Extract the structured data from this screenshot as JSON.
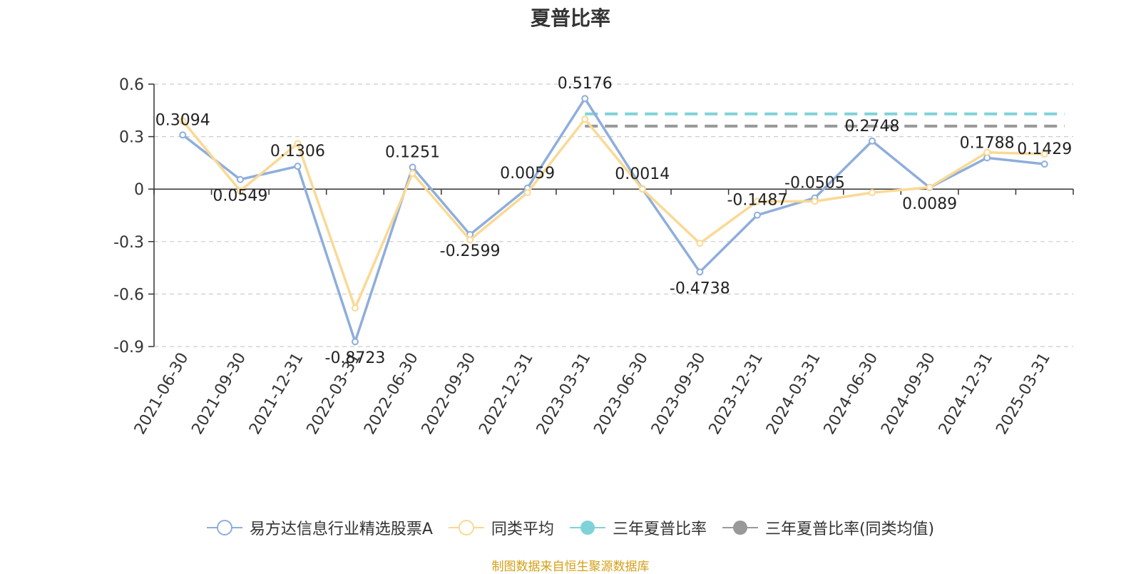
{
  "title": "夏普比率",
  "source": "制图数据来自恒生聚源数据库",
  "colors": {
    "fund": "#8eaedb",
    "peer": "#fad995",
    "three_year": "#7fd3d8",
    "three_year_peer": "#999999"
  },
  "chart_data": {
    "type": "line",
    "title": "夏普比率",
    "categories": [
      "2021-06-30",
      "2021-09-30",
      "2021-12-31",
      "2022-03-31",
      "2022-06-30",
      "2022-09-30",
      "2022-12-31",
      "2023-03-31",
      "2023-06-30",
      "2023-09-30",
      "2023-12-31",
      "2024-03-31",
      "2024-06-30",
      "2024-09-30",
      "2024-12-31",
      "2025-03-31"
    ],
    "ylim": [
      -0.9,
      0.6
    ],
    "yticks": [
      0.6,
      0.3,
      0,
      -0.3,
      -0.6,
      -0.9
    ],
    "ytick_labels": [
      "0.6",
      "0.3",
      "0",
      "-0.3",
      "-0.6",
      "-0.9"
    ],
    "grid": true,
    "legend_position": "bottom",
    "series": [
      {
        "name": "易方达信息行业精选股票A",
        "values": [
          0.3094,
          0.0549,
          0.1306,
          -0.8723,
          0.1251,
          -0.2599,
          0.0059,
          0.5176,
          0.0014,
          -0.4738,
          -0.1487,
          -0.0505,
          0.2748,
          0.0089,
          0.1788,
          0.1429
        ],
        "labels": [
          "0.3094",
          "0.0549",
          "0.1306",
          "-0.8723",
          "0.1251",
          "-0.2599",
          "0.0059",
          "0.5176",
          "0.0014",
          "-0.4738",
          "-0.1487",
          "-0.0505",
          "0.2748",
          "0.0089",
          "0.1788",
          "0.1429"
        ]
      },
      {
        "name": "同类平均",
        "values": [
          0.39,
          -0.01,
          0.26,
          -0.68,
          0.09,
          -0.29,
          -0.02,
          0.4,
          0.0,
          -0.31,
          -0.07,
          -0.07,
          -0.02,
          0.01,
          0.21,
          0.2
        ]
      },
      {
        "name": "三年夏普比率",
        "style": "dashed",
        "start": "2023-03-31",
        "value": 0.43
      },
      {
        "name": "三年夏普比率(同类均值)",
        "style": "dashed",
        "start": "2023-03-31",
        "value": 0.36
      }
    ]
  }
}
